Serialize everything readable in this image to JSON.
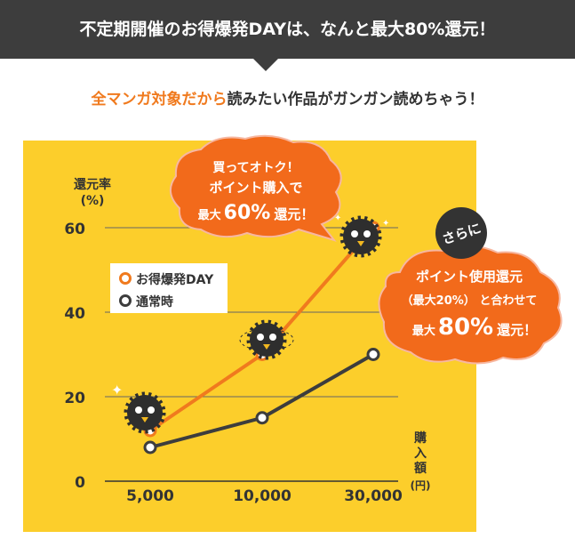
{
  "banner": {
    "text": "不定期開催のお得爆発DAYは、なんと最大80%還元！"
  },
  "subline": {
    "accent": "全マンガ対象だから",
    "rest": "読みたい作品がガンガン読めちゃう！"
  },
  "colors": {
    "panel": "#fcce2b",
    "orange": "#f07a1e",
    "dark": "#3d3d3d",
    "bubble": "#f26a1b",
    "dark_bubble": "#333333"
  },
  "chart_data": {
    "type": "line",
    "categories": [
      "5,000",
      "10,000",
      "30,000"
    ],
    "series": [
      {
        "name": "お得爆発DAY",
        "values": [
          12,
          30,
          60
        ],
        "color": "#f07a1e"
      },
      {
        "name": "通常時",
        "values": [
          8,
          15,
          30
        ],
        "color": "#3d3d3d"
      }
    ],
    "ylim": [
      0,
      60
    ],
    "yticks": [
      "0",
      "20",
      "40",
      "60"
    ],
    "ylabel_lines": [
      "還元率",
      "(%)"
    ],
    "xlabel_lines": [
      "購",
      "入",
      "額",
      "(円)"
    ],
    "legend_position": "upper-left",
    "grid": true
  },
  "callout_left": {
    "line1": "買ってオトク！",
    "line2": "ポイント購入で",
    "pre": "最大",
    "big": "60%",
    "post": "還元！"
  },
  "callout_badge": {
    "text": "さらに"
  },
  "callout_right": {
    "line1": "ポイント使用還元",
    "line2": "（最大20%） と合わせて",
    "pre": "最大",
    "big": "80%",
    "post": "還元！"
  }
}
